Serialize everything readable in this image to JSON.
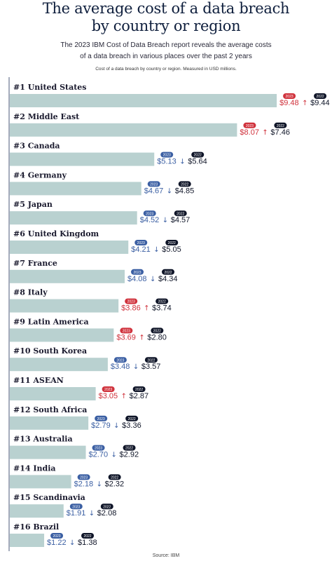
{
  "header": {
    "title_line1": "The average cost of a data breach",
    "title_line2": "by country or region",
    "subtitle_line1": "The 2023 IBM Cost of Data Breach report reveals the average costs",
    "subtitle_line2": "of a data breach in various places over the past 2 years",
    "note": "Cost of a data breach by country or region. Measured in USD millions.",
    "source": "Source: IBM"
  },
  "colors": {
    "bar": "#b9d1d0",
    "axis": "#4b5a78",
    "up": "#d0323c",
    "down": "#3b5fa3",
    "dark": "#0f1528",
    "label": "#1a1a2e"
  },
  "chart_data": {
    "type": "bar",
    "orientation": "horizontal",
    "unit": "USD millions",
    "year_current": "2023",
    "year_previous": "2022",
    "categories": [
      "#1 United States",
      "#2 Middle East",
      "#3 Canada",
      "#4 Germany",
      "#5 Japan",
      "#6 United Kingdom",
      "#7 France",
      "#8 Italy",
      "#9 Latin America",
      "#10 South Korea",
      "#11 ASEAN",
      "#12 South Africa",
      "#13 Australia",
      "#14 India",
      "#15 Scandinavia",
      "#16 Brazil"
    ],
    "series": [
      {
        "name": "2023",
        "values": [
          9.48,
          8.07,
          5.13,
          4.67,
          4.52,
          4.21,
          4.08,
          3.86,
          3.69,
          3.48,
          3.05,
          2.79,
          2.7,
          2.18,
          1.91,
          1.22
        ]
      },
      {
        "name": "2022",
        "values": [
          9.44,
          7.46,
          5.64,
          4.85,
          4.57,
          5.05,
          4.34,
          3.74,
          2.8,
          3.57,
          2.87,
          3.36,
          2.92,
          2.32,
          2.08,
          1.38
        ]
      }
    ],
    "value_labels_2023": [
      "$9.48",
      "$8.07",
      "$5.13",
      "$4.67",
      "$4.52",
      "$4.21",
      "$4.08",
      "$3.86",
      "$3.69",
      "$3.48",
      "$3.05",
      "$2.79",
      "$2.70",
      "$2.18",
      "$1.91",
      "$1.22"
    ],
    "value_labels_2022": [
      "$9.44",
      "$7.46",
      "$5.64",
      "$4.85",
      "$4.57",
      "$5.05",
      "$4.34",
      "$3.74",
      "$2.80",
      "$3.57",
      "$2.87",
      "$3.36",
      "$2.92",
      "$2.32",
      "$2.08",
      "$1.38"
    ],
    "trend": [
      "up",
      "up",
      "down",
      "down",
      "down",
      "down",
      "down",
      "up",
      "up",
      "down",
      "up",
      "down",
      "down",
      "down",
      "down",
      "down"
    ],
    "arrow_up": "↑",
    "arrow_down": "↓"
  }
}
